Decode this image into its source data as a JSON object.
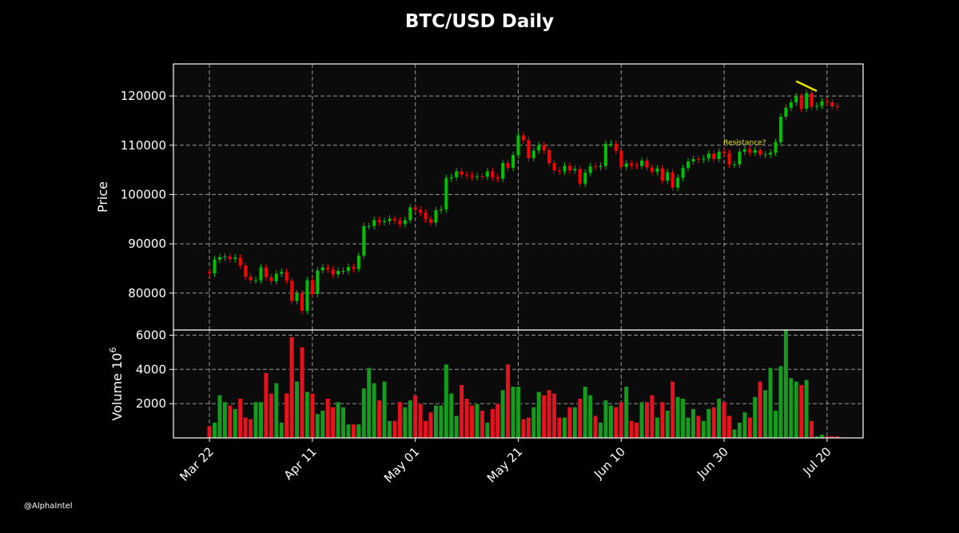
{
  "chart_data": {
    "type": "candlestick",
    "title": "BTC/USD Daily",
    "price_panel": {
      "ylabel": "Price",
      "ylim": [
        72500,
        126500
      ],
      "yticks": [
        80000,
        90000,
        100000,
        110000,
        120000
      ]
    },
    "volume_panel": {
      "ylabel": "Volume",
      "ylabel_exponent": "6",
      "ylim": [
        0,
        6300
      ],
      "yticks": [
        2000,
        4000,
        6000
      ]
    },
    "x_ticks": [
      {
        "label": "Mar 22",
        "day": 0
      },
      {
        "label": "Apr 11",
        "day": 20
      },
      {
        "label": "May 01",
        "day": 40
      },
      {
        "label": "May 21",
        "day": 60
      },
      {
        "label": "Jun 10",
        "day": 80
      },
      {
        "label": "Jun 30",
        "day": 100
      },
      {
        "label": "Jul 20",
        "day": 120
      }
    ],
    "xlim": [
      -7,
      127
    ],
    "closes": [
      84000,
      86800,
      87300,
      87400,
      86900,
      87200,
      85600,
      83300,
      82600,
      82600,
      85200,
      83200,
      82400,
      83900,
      84300,
      82500,
      78400,
      79900,
      76400,
      82600,
      79800,
      84600,
      85200,
      84800,
      83800,
      84500,
      84500,
      85300,
      84900,
      87600,
      93600,
      93600,
      94800,
      94400,
      94600,
      95100,
      94700,
      94000,
      94800,
      97400,
      96900,
      96300,
      95000,
      94300,
      96800,
      97000,
      103300,
      103500,
      104700,
      104000,
      103900,
      103600,
      103700,
      103600,
      104700,
      103500,
      103200,
      106400,
      105400,
      108000,
      112000,
      111000,
      107400,
      108900,
      110000,
      109000,
      106400,
      104900,
      104700,
      105800,
      104900,
      105200,
      102200,
      104400,
      105700,
      105600,
      105800,
      110300,
      110300,
      108900,
      105600,
      106300,
      105900,
      105800,
      106900,
      105500,
      104600,
      105300,
      102800,
      104500,
      101400,
      103400,
      105400,
      106700,
      107200,
      107100,
      107300,
      108300,
      107200,
      108700,
      108400,
      106100,
      106100,
      108700,
      109200,
      108500,
      109000,
      108100,
      108100,
      108500,
      110600,
      115800,
      117600,
      118700,
      119900,
      117400,
      120600,
      117800,
      118000,
      118900,
      118700,
      117900,
      117700
    ],
    "volumes": [
      700,
      900,
      2500,
      2100,
      1900,
      1700,
      2300,
      1200,
      1100,
      2100,
      2100,
      3800,
      2600,
      3200,
      900,
      2600,
      5900,
      3300,
      5300,
      2700,
      2600,
      1400,
      1600,
      2300,
      1800,
      2100,
      1800,
      800,
      800,
      800,
      2900,
      4100,
      3200,
      2200,
      3300,
      1000,
      1000,
      2100,
      1800,
      2200,
      2500,
      2000,
      1000,
      1500,
      1900,
      1900,
      4300,
      2600,
      1300,
      3100,
      2300,
      1900,
      2000,
      1600,
      900,
      1700,
      2000,
      2800,
      4300,
      3000,
      3000,
      1100,
      1200,
      1800,
      2700,
      2500,
      2800,
      2600,
      1200,
      1200,
      1800,
      1800,
      2300,
      3000,
      2500,
      1300,
      900,
      2200,
      1900,
      1800,
      2100,
      3000,
      1000,
      900,
      2100,
      2100,
      2500,
      1200,
      2100,
      1600,
      3300,
      2400,
      2300,
      1200,
      1700,
      1300,
      1000,
      1700,
      1800,
      2300,
      2100,
      1300,
      500,
      900,
      1500,
      1200,
      2400,
      3300,
      2800,
      4100,
      1600,
      4200,
      6300,
      3500,
      3300,
      3100,
      3400,
      1000,
      100,
      200,
      100,
      100,
      100
    ],
    "up_color": "#00c000",
    "down_color": "#ff0000",
    "annotations": [
      {
        "text": "Resistance?",
        "x": 104,
        "y": 110800
      }
    ],
    "trendline": {
      "color": "#e6e600",
      "points": [
        [
          114,
          123000
        ],
        [
          118,
          121000
        ]
      ]
    }
  },
  "watermark": "@AlphaIntel"
}
